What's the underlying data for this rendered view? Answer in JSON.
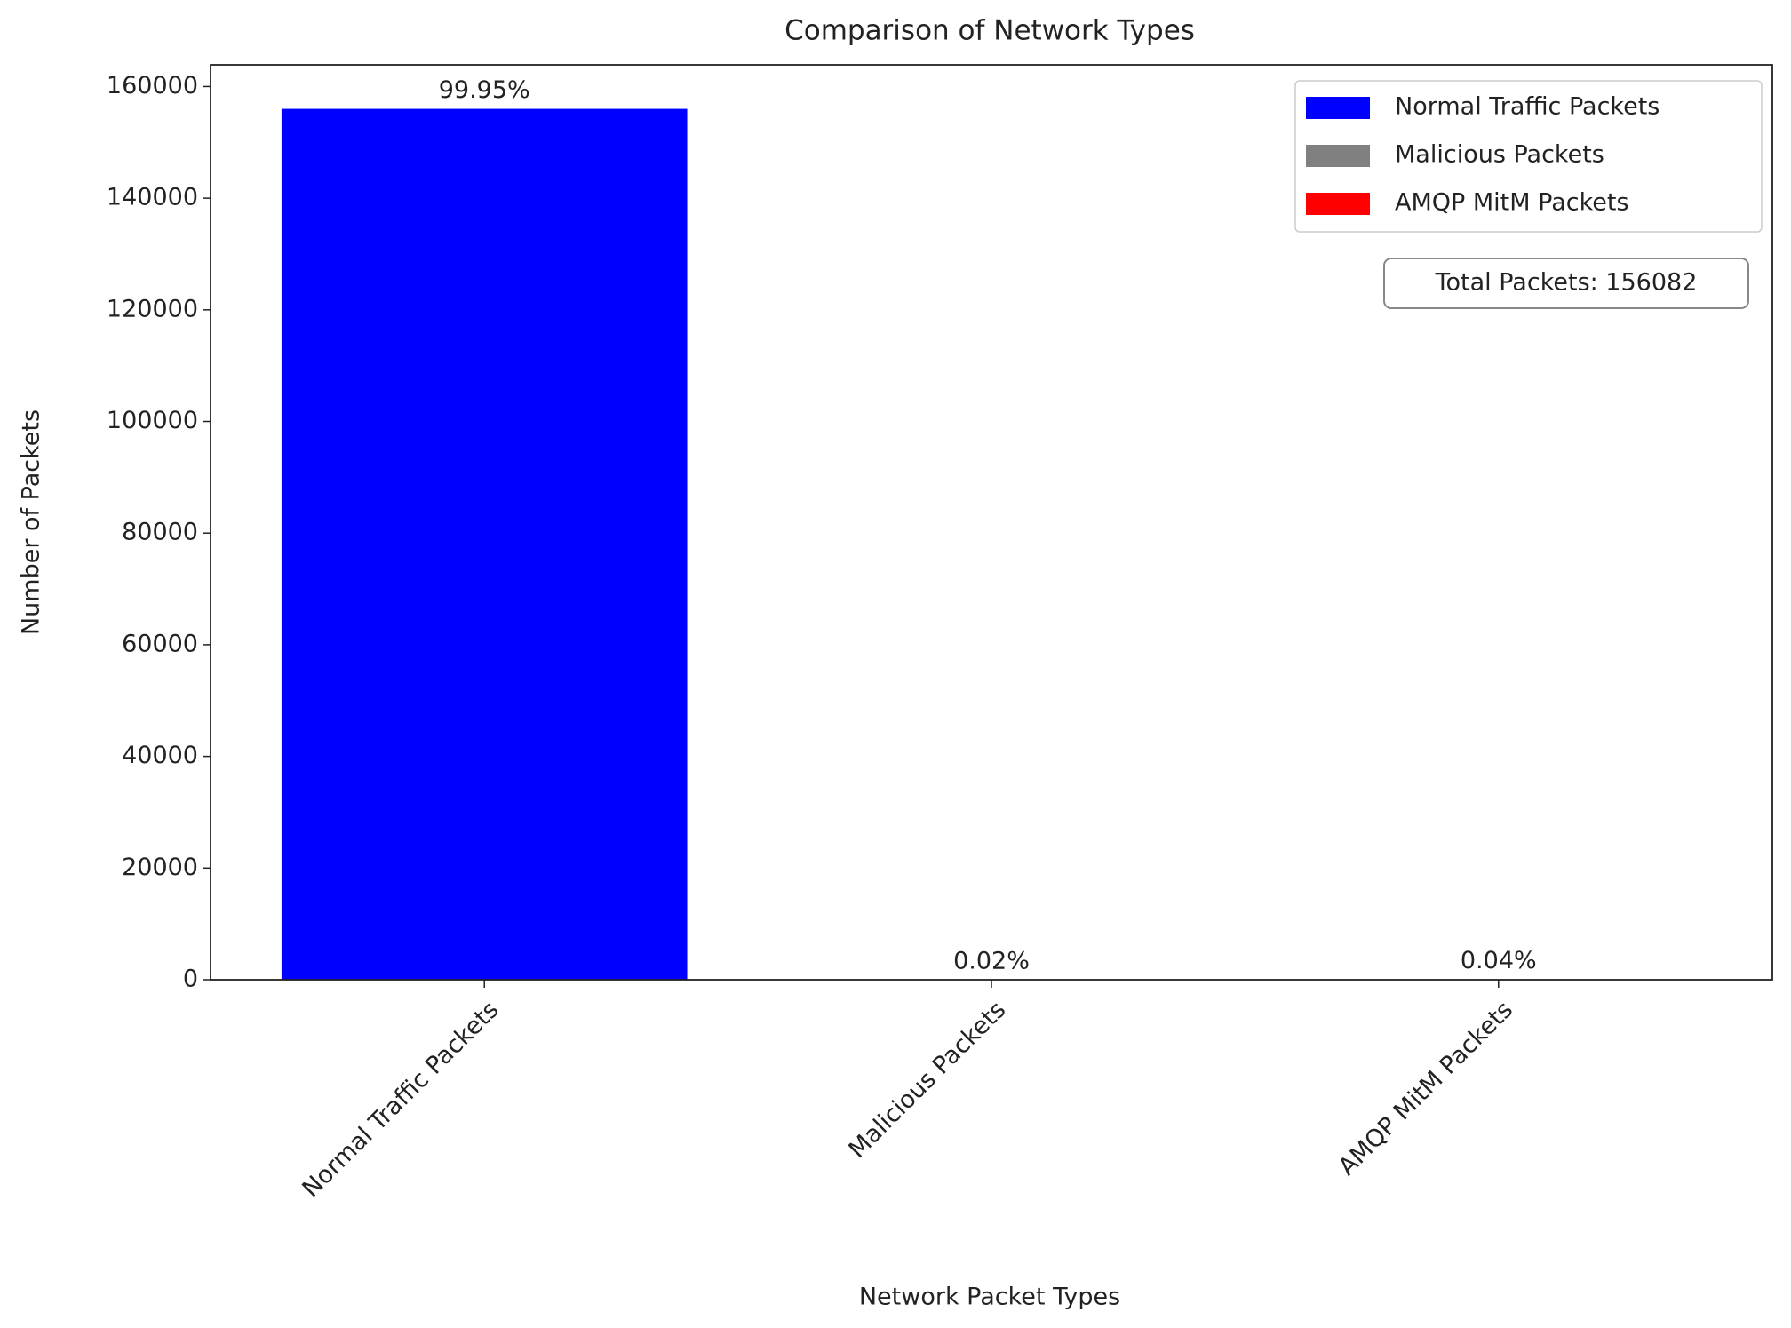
{
  "chart_data": {
    "type": "bar",
    "title": "Comparison of Network Types",
    "x_label": "Network Packet Types",
    "y_label": "Number of Packets",
    "categories": [
      "Normal Traffic Packets",
      "Malicious Packets",
      "AMQP MitM Packets"
    ],
    "values": [
      155997,
      28,
      57
    ],
    "value_labels": [
      "99.95%",
      "0.02%",
      "0.04%"
    ],
    "colors": [
      "#0000ff",
      "#808080",
      "#ff0000"
    ],
    "ylim": [
      0,
      163886
    ],
    "yticks": [
      0,
      20000,
      40000,
      60000,
      80000,
      100000,
      120000,
      140000,
      160000
    ],
    "legend": "upper right",
    "annotation": "Total Packets: 156082",
    "grid": false
  }
}
